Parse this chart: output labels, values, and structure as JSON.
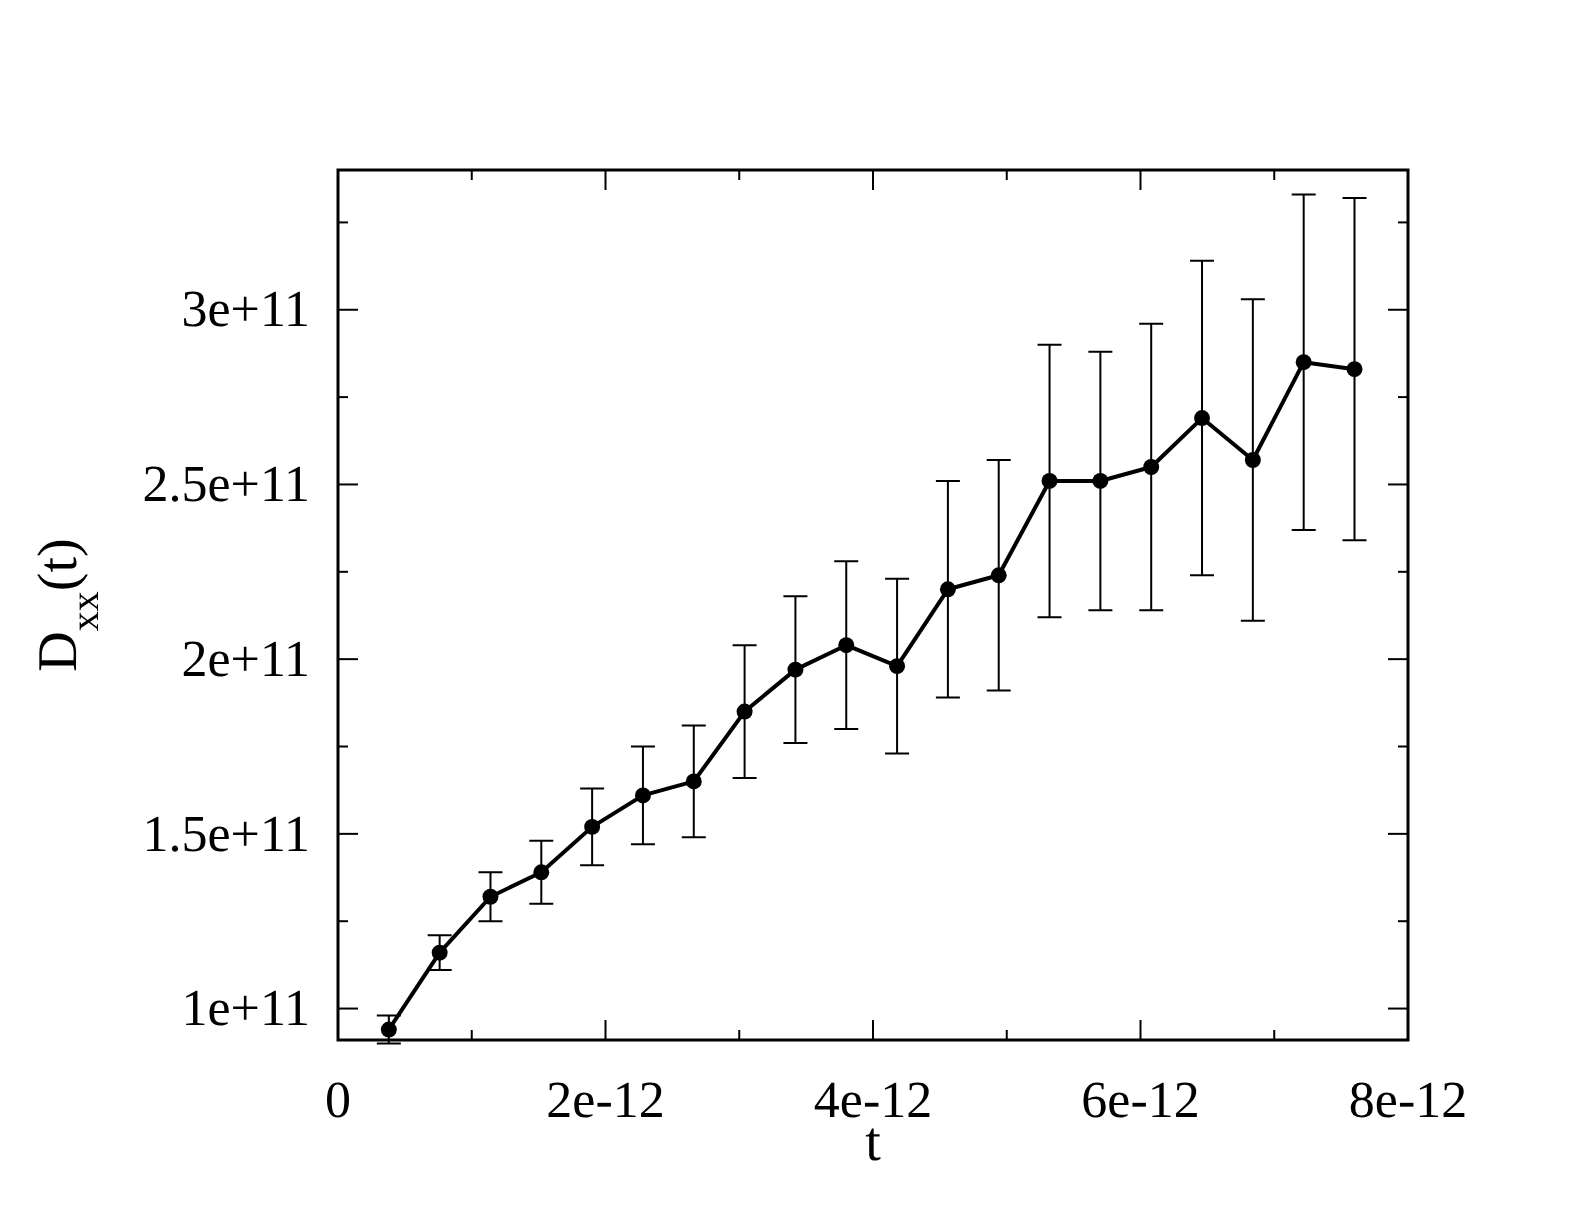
{
  "chart_data": {
    "type": "line",
    "xlabel": "t",
    "ylabel": "D$_{xx}$(t)",
    "x": [
      3.8e-13,
      7.6e-13,
      1.14e-12,
      1.52e-12,
      1.9e-12,
      2.28e-12,
      2.66e-12,
      3.04e-12,
      3.42e-12,
      3.8e-12,
      4.18e-12,
      4.56e-12,
      4.94e-12,
      5.32e-12,
      5.7e-12,
      6.08e-12,
      6.46e-12,
      6.84e-12,
      7.22e-12,
      7.6e-12
    ],
    "series": [
      {
        "color": "#000000",
        "values": [
          94000000000.0,
          116000000000.0,
          132000000000.0,
          139000000000.0,
          152000000000.0,
          161000000000.0,
          165000000000.0,
          185000000000.0,
          197000000000.0,
          204000000000.0,
          198000000000.0,
          220000000000.0,
          224000000000.0,
          251000000000.0,
          251000000000.0,
          255000000000.0,
          269000000000.0,
          257000000000.0,
          285000000000.0,
          283000000000.0
        ],
        "errors": [
          4000000000.0,
          5000000000.0,
          7000000000.0,
          9000000000.0,
          11000000000.0,
          14000000000.0,
          16000000000.0,
          19000000000.0,
          21000000000.0,
          24000000000.0,
          25000000000.0,
          31000000000.0,
          33000000000.0,
          39000000000.0,
          37000000000.0,
          41000000000.0,
          45000000000.0,
          46000000000.0,
          48000000000.0,
          49000000000.0
        ]
      }
    ],
    "xlim": [
      0,
      8e-12
    ],
    "ylim": [
      91000000000.0,
      340000000000.0
    ],
    "xticks": [
      {
        "value": 0,
        "label": "0"
      },
      {
        "value": 1e-12,
        "label": null
      },
      {
        "value": 2e-12,
        "label": "2e-12"
      },
      {
        "value": 3e-12,
        "label": null
      },
      {
        "value": 4e-12,
        "label": "4e-12"
      },
      {
        "value": 5e-12,
        "label": null
      },
      {
        "value": 6e-12,
        "label": "6e-12"
      },
      {
        "value": 7e-12,
        "label": null
      },
      {
        "value": 8e-12,
        "label": "8e-12"
      }
    ],
    "yticks": [
      {
        "value": 100000000000.0,
        "label": "1e+11"
      },
      {
        "value": 125000000000.0,
        "label": null
      },
      {
        "value": 150000000000.0,
        "label": "1.5e+11"
      },
      {
        "value": 175000000000.0,
        "label": null
      },
      {
        "value": 200000000000.0,
        "label": "2e+11"
      },
      {
        "value": 225000000000.0,
        "label": null
      },
      {
        "value": 250000000000.0,
        "label": "2.5e+11"
      },
      {
        "value": 275000000000.0,
        "label": null
      },
      {
        "value": 300000000000.0,
        "label": "3e+11"
      },
      {
        "value": 325000000000.0,
        "label": null
      }
    ],
    "grid": false,
    "marker": "circle",
    "line_style": "solid"
  }
}
